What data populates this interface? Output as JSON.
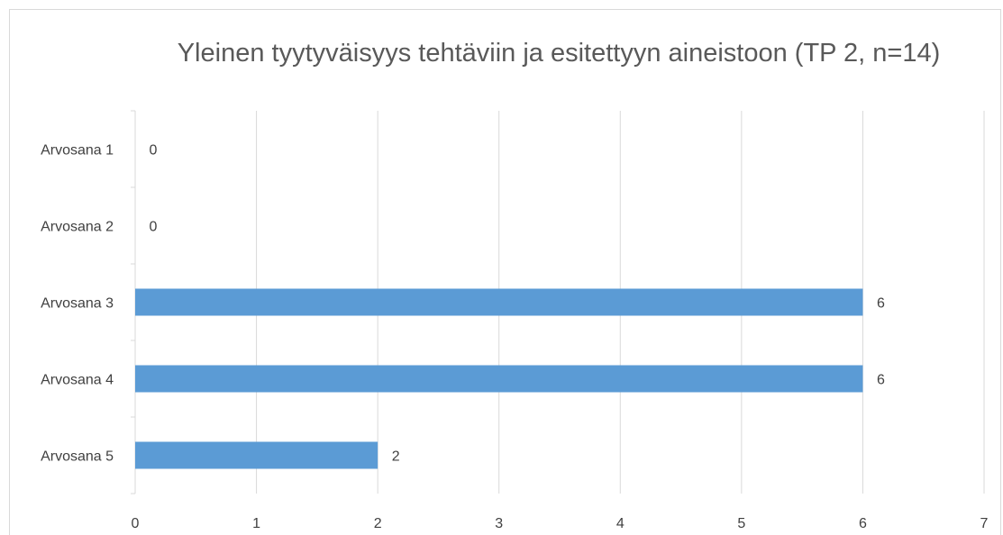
{
  "chart_data": {
    "type": "bar",
    "orientation": "horizontal",
    "title": "Yleinen tyytyväisyys tehtäviin ja esitettyyn aineistoon (TP 2, n=14)",
    "categories": [
      "Arvosana 1",
      "Arvosana 2",
      "Arvosana 3",
      "Arvosana 4",
      "Arvosana 5"
    ],
    "values": [
      0,
      0,
      6,
      6,
      2
    ],
    "color": "#5b9bd5",
    "xlim": [
      0,
      7
    ],
    "xticks": [
      0,
      1,
      2,
      3,
      4,
      5,
      6,
      7
    ],
    "grid": true
  }
}
